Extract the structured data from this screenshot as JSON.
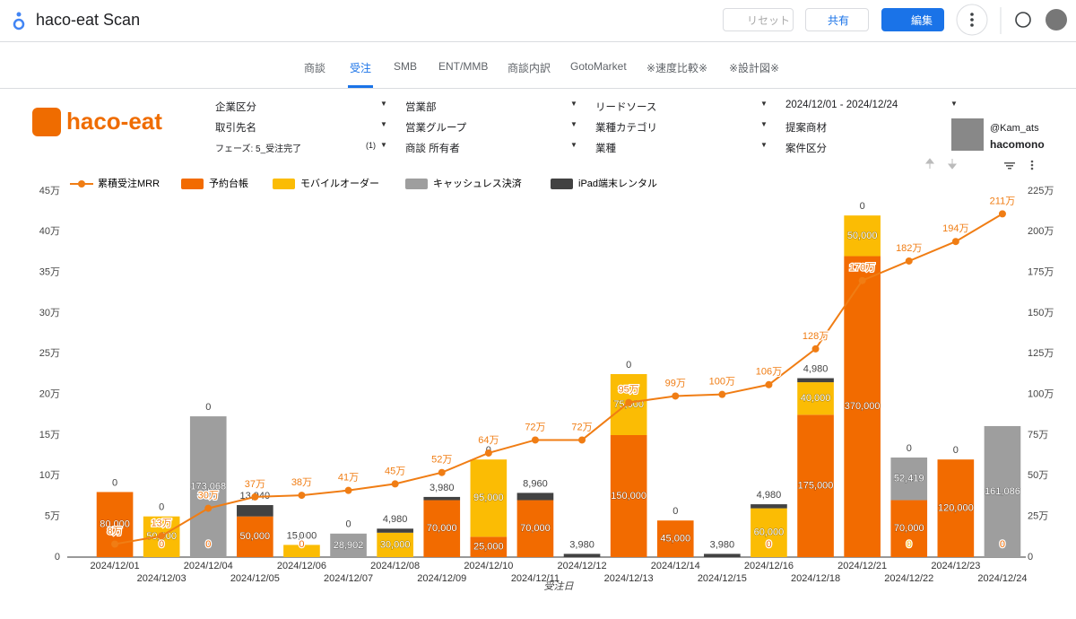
{
  "app": {
    "title": "haco-eat Scan",
    "reset": "リセット",
    "share": "共有",
    "edit": "編集"
  },
  "tabs": [
    "商談",
    "受注",
    "SMB",
    "ENT/MMB",
    "商談内訳",
    "GotoMarket",
    "※速度比較※",
    "※設計図※"
  ],
  "active_tab": 1,
  "logo": "haco-eat",
  "filters": [
    {
      "label": "企業区分"
    },
    {
      "label": "営業部"
    },
    {
      "label": "リードソース"
    },
    {
      "label": "2024/12/01 - 2024/12/24"
    },
    {
      "label": "取引先名"
    },
    {
      "label": "営業グループ"
    },
    {
      "label": "業種カテゴリ"
    },
    {
      "label": "提案商材"
    },
    {
      "label": "フェーズ: 5_受注完了",
      "count": "(1)"
    },
    {
      "label": "商談 所有者"
    },
    {
      "label": "業種"
    },
    {
      "label": "案件区分"
    }
  ],
  "profile": {
    "handle": "@Kam_ats",
    "brand": "hacomono"
  },
  "chart_data": {
    "type": "combo",
    "x_label": "受注日",
    "categories": [
      "2024/12/01",
      "2024/12/03",
      "2024/12/04",
      "2024/12/05",
      "2024/12/06",
      "2024/12/07",
      "2024/12/08",
      "2024/12/09",
      "2024/12/10",
      "2024/12/11",
      "2024/12/12",
      "2024/12/13",
      "2024/12/14",
      "2024/12/15",
      "2024/12/16",
      "2024/12/18",
      "2024/12/21",
      "2024/12/22",
      "2024/12/23",
      "2024/12/24"
    ],
    "ylim": [
      0,
      450000
    ],
    "yticks": [
      0,
      {
        "value": 50000,
        "label": "5万"
      },
      {
        "value": 100000,
        "label": "10万"
      },
      {
        "value": 150000,
        "label": "15万"
      },
      {
        "value": 200000,
        "label": "20万"
      },
      {
        "value": 250000,
        "label": "25万"
      },
      {
        "value": 300000,
        "label": "30万"
      },
      {
        "value": 350000,
        "label": "35万"
      },
      {
        "value": 400000,
        "label": "40万"
      },
      {
        "value": 450000,
        "label": "45万"
      }
    ],
    "y2lim": [
      0,
      225
    ],
    "y2ticks": [
      0,
      {
        "value": 25,
        "label": "25万"
      },
      {
        "value": 50,
        "label": "50万"
      },
      {
        "value": 75,
        "label": "75万"
      },
      {
        "value": 100,
        "label": "100万"
      },
      {
        "value": 125,
        "label": "125万"
      },
      {
        "value": 150,
        "label": "150万"
      },
      {
        "value": 175,
        "label": "175万"
      },
      {
        "value": 200,
        "label": "200万"
      },
      {
        "value": 225,
        "label": "225万"
      }
    ],
    "series": [
      {
        "name": "累積受注MRR",
        "kind": "line",
        "axis": "y2",
        "color": "#f07d14",
        "values": [
          8,
          13,
          30,
          37,
          38,
          41,
          45,
          52,
          64,
          72,
          72,
          95,
          99,
          100,
          106,
          128,
          170,
          182,
          194,
          211
        ],
        "value_labels": [
          "8万",
          "13万",
          "30万",
          "37万",
          "38万",
          "41万",
          "45万",
          "52万",
          "64万",
          "72万",
          "72万",
          "95万",
          "99万",
          "100万",
          "106万",
          "128万",
          "170万",
          "182万",
          "194万",
          "211万"
        ]
      },
      {
        "name": "予約台帳",
        "kind": "bar",
        "color": "#f26b00",
        "values": [
          80000,
          0,
          0,
          50000,
          0,
          null,
          null,
          70000,
          25000,
          70000,
          null,
          150000,
          45000,
          null,
          0,
          175000,
          370000,
          70000,
          120000,
          0
        ],
        "value_labels": [
          "80,000",
          "0",
          "0",
          "50,000",
          "0",
          null,
          null,
          "70,000",
          "25,000",
          "70,000",
          null,
          "150,000",
          "45,000",
          null,
          "0",
          "175,000",
          "370,000",
          "70,000",
          "120,000",
          "0"
        ]
      },
      {
        "name": "モバイルオーダー",
        "kind": "bar",
        "color": "#fbbc04",
        "values": [
          null,
          50000,
          null,
          null,
          15000,
          null,
          30000,
          null,
          95000,
          null,
          null,
          75000,
          null,
          null,
          60000,
          40000,
          50000,
          0,
          null,
          null
        ],
        "value_labels": [
          null,
          "50,000",
          null,
          null,
          "15,000",
          null,
          "30,000",
          null,
          "95,000",
          null,
          null,
          "75,000",
          null,
          null,
          "60,000",
          "40,000",
          "50,000",
          "0",
          null,
          null
        ]
      },
      {
        "name": "キャッシュレス決済",
        "kind": "bar",
        "color": "#9e9e9e",
        "values": [
          null,
          null,
          173068,
          null,
          null,
          28902,
          null,
          null,
          null,
          null,
          null,
          null,
          null,
          null,
          null,
          null,
          null,
          52419,
          null,
          161086
        ],
        "value_labels": [
          null,
          null,
          "173,068",
          null,
          null,
          "28,902",
          null,
          null,
          null,
          null,
          null,
          null,
          null,
          null,
          null,
          null,
          null,
          "52,419",
          null,
          "161,086"
        ]
      },
      {
        "name": "iPad端末レンタル",
        "kind": "bar",
        "color": "#424242",
        "values": [
          0,
          0,
          0,
          13940,
          0,
          0,
          4980,
          3980,
          0,
          8960,
          3980,
          0,
          0,
          3980,
          4980,
          4980,
          0,
          0,
          0,
          null
        ],
        "value_labels": [
          "0",
          "0",
          "0",
          "13,940",
          "0",
          "0",
          "4,980",
          "3,980",
          "0",
          "8,960",
          "3,980",
          "0",
          "0",
          "3,980",
          "4,980",
          "4,980",
          "0",
          "0",
          "0",
          null
        ]
      }
    ]
  }
}
